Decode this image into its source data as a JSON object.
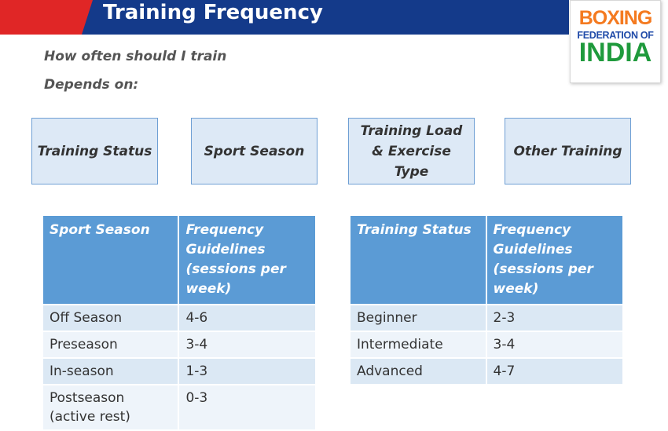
{
  "header": {
    "title": "Training Frequency"
  },
  "logo": {
    "line1": "BOXING",
    "line2": "FEDERATION OF",
    "line3": "INDIA"
  },
  "intro": {
    "question": "How often should I train",
    "depends": "Depends on:"
  },
  "factors": [
    "Training Status",
    "Sport Season",
    "Training Load & Exercise Type",
    "Other Training"
  ],
  "season_table": {
    "headers": [
      "Sport Season",
      "Frequency Guidelines (sessions per week)"
    ],
    "rows": [
      [
        "Off Season",
        "4-6"
      ],
      [
        "Preseason",
        "3-4"
      ],
      [
        "In-season",
        "1-3"
      ],
      [
        "Postseason (active rest)",
        "0-3"
      ]
    ]
  },
  "status_table": {
    "headers": [
      "Training Status",
      "Frequency Guidelines (sessions per week)"
    ],
    "rows": [
      [
        "Beginner",
        "2-3"
      ],
      [
        "Intermediate",
        "3-4"
      ],
      [
        "Advanced",
        "4-7"
      ]
    ]
  },
  "colors": {
    "header_red": "#e02626",
    "header_blue": "#143a8a",
    "table_header": "#5b9bd5",
    "table_row": "#dbe8f4",
    "factor_box": "#dde9f6",
    "logo_orange": "#f47a20",
    "logo_blue": "#1f4aa8",
    "logo_green": "#1f9a3c"
  }
}
